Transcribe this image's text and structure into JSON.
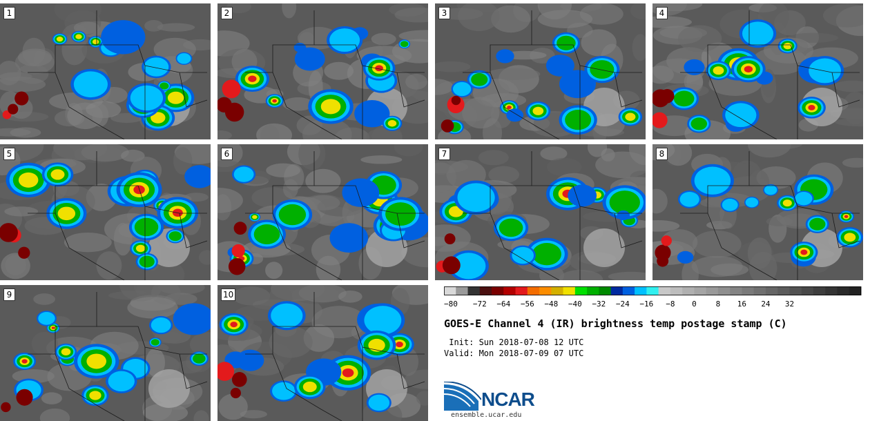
{
  "panels": [
    {
      "label": "1"
    },
    {
      "label": "2"
    },
    {
      "label": "3"
    },
    {
      "label": "4"
    },
    {
      "label": "5"
    },
    {
      "label": "6"
    },
    {
      "label": "7"
    },
    {
      "label": "8"
    },
    {
      "label": "9"
    },
    {
      "label": "10"
    }
  ],
  "colorbar": {
    "tick_labels": [
      "−80",
      "−72",
      "−64",
      "−56",
      "−48",
      "−40",
      "−32",
      "−24",
      "−16",
      "−8",
      "0",
      "8",
      "16",
      "24",
      "32"
    ],
    "colors": [
      "#d9d9d9",
      "#9a9a9a",
      "#333333",
      "#4a1010",
      "#7a0000",
      "#b30000",
      "#e31a1c",
      "#f46d00",
      "#fc8d00",
      "#d4b000",
      "#f0e000",
      "#00e000",
      "#00b000",
      "#008a00",
      "#002aa0",
      "#0060e0",
      "#00c0ff",
      "#30f0f0",
      "#c8c8c8",
      "#bdbdbd",
      "#b0b0b0",
      "#a5a5a5",
      "#9a9a9a",
      "#8f8f8f",
      "#848484",
      "#7a7a7a",
      "#707070",
      "#666666",
      "#5c5c5c",
      "#525252",
      "#484848",
      "#3e3e3e",
      "#343434",
      "#2a2a2a",
      "#222222"
    ]
  },
  "title": "GOES-E Channel 4 (IR) brightness temp postage stamp (C)",
  "init_line": " Init: Sun 2018-07-08 12 UTC",
  "valid_line": "Valid: Mon 2018-07-09 07 UTC",
  "logo": {
    "text": "NCAR",
    "icon": "ncar-logo-icon"
  },
  "site": "ensemble.ucar.edu"
}
